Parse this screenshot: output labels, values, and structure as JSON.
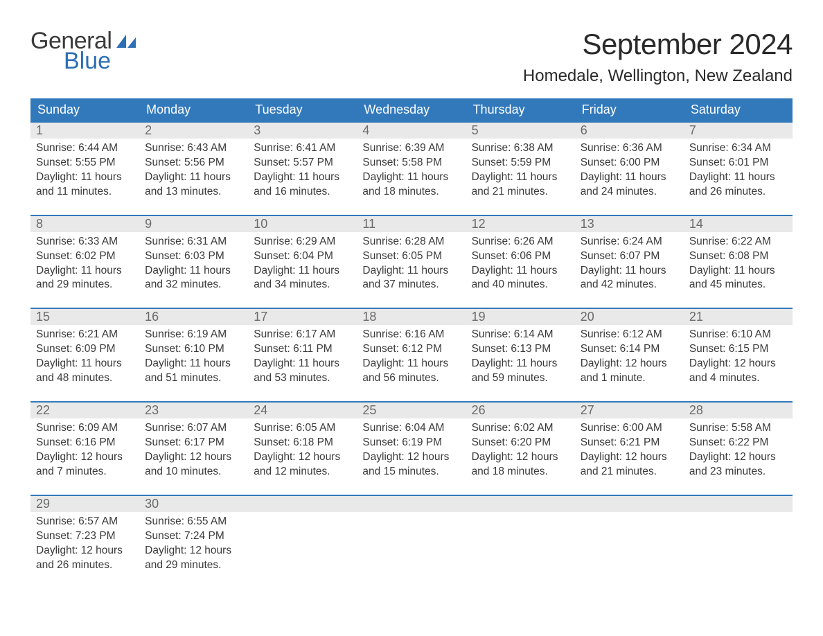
{
  "logo": {
    "text1": "General",
    "text2": "Blue"
  },
  "title": "September 2024",
  "location": "Homedale, Wellington, New Zealand",
  "colors": {
    "header_bg": "#3279bc",
    "header_text": "#ffffff",
    "daynum_bg": "#e9e9e9",
    "daynum_text": "#6a6a6a",
    "body_text": "#3a3a3a",
    "rule": "#3279bc",
    "logo_blue": "#2c6fb5"
  },
  "weekdays": [
    "Sunday",
    "Monday",
    "Tuesday",
    "Wednesday",
    "Thursday",
    "Friday",
    "Saturday"
  ],
  "labels": {
    "sunrise": "Sunrise:",
    "sunset": "Sunset:",
    "daylight": "Daylight:"
  },
  "days": [
    {
      "n": "1",
      "sr": "6:44 AM",
      "ss": "5:55 PM",
      "dl": "11 hours and 11 minutes."
    },
    {
      "n": "2",
      "sr": "6:43 AM",
      "ss": "5:56 PM",
      "dl": "11 hours and 13 minutes."
    },
    {
      "n": "3",
      "sr": "6:41 AM",
      "ss": "5:57 PM",
      "dl": "11 hours and 16 minutes."
    },
    {
      "n": "4",
      "sr": "6:39 AM",
      "ss": "5:58 PM",
      "dl": "11 hours and 18 minutes."
    },
    {
      "n": "5",
      "sr": "6:38 AM",
      "ss": "5:59 PM",
      "dl": "11 hours and 21 minutes."
    },
    {
      "n": "6",
      "sr": "6:36 AM",
      "ss": "6:00 PM",
      "dl": "11 hours and 24 minutes."
    },
    {
      "n": "7",
      "sr": "6:34 AM",
      "ss": "6:01 PM",
      "dl": "11 hours and 26 minutes."
    },
    {
      "n": "8",
      "sr": "6:33 AM",
      "ss": "6:02 PM",
      "dl": "11 hours and 29 minutes."
    },
    {
      "n": "9",
      "sr": "6:31 AM",
      "ss": "6:03 PM",
      "dl": "11 hours and 32 minutes."
    },
    {
      "n": "10",
      "sr": "6:29 AM",
      "ss": "6:04 PM",
      "dl": "11 hours and 34 minutes."
    },
    {
      "n": "11",
      "sr": "6:28 AM",
      "ss": "6:05 PM",
      "dl": "11 hours and 37 minutes."
    },
    {
      "n": "12",
      "sr": "6:26 AM",
      "ss": "6:06 PM",
      "dl": "11 hours and 40 minutes."
    },
    {
      "n": "13",
      "sr": "6:24 AM",
      "ss": "6:07 PM",
      "dl": "11 hours and 42 minutes."
    },
    {
      "n": "14",
      "sr": "6:22 AM",
      "ss": "6:08 PM",
      "dl": "11 hours and 45 minutes."
    },
    {
      "n": "15",
      "sr": "6:21 AM",
      "ss": "6:09 PM",
      "dl": "11 hours and 48 minutes."
    },
    {
      "n": "16",
      "sr": "6:19 AM",
      "ss": "6:10 PM",
      "dl": "11 hours and 51 minutes."
    },
    {
      "n": "17",
      "sr": "6:17 AM",
      "ss": "6:11 PM",
      "dl": "11 hours and 53 minutes."
    },
    {
      "n": "18",
      "sr": "6:16 AM",
      "ss": "6:12 PM",
      "dl": "11 hours and 56 minutes."
    },
    {
      "n": "19",
      "sr": "6:14 AM",
      "ss": "6:13 PM",
      "dl": "11 hours and 59 minutes."
    },
    {
      "n": "20",
      "sr": "6:12 AM",
      "ss": "6:14 PM",
      "dl": "12 hours and 1 minute."
    },
    {
      "n": "21",
      "sr": "6:10 AM",
      "ss": "6:15 PM",
      "dl": "12 hours and 4 minutes."
    },
    {
      "n": "22",
      "sr": "6:09 AM",
      "ss": "6:16 PM",
      "dl": "12 hours and 7 minutes."
    },
    {
      "n": "23",
      "sr": "6:07 AM",
      "ss": "6:17 PM",
      "dl": "12 hours and 10 minutes."
    },
    {
      "n": "24",
      "sr": "6:05 AM",
      "ss": "6:18 PM",
      "dl": "12 hours and 12 minutes."
    },
    {
      "n": "25",
      "sr": "6:04 AM",
      "ss": "6:19 PM",
      "dl": "12 hours and 15 minutes."
    },
    {
      "n": "26",
      "sr": "6:02 AM",
      "ss": "6:20 PM",
      "dl": "12 hours and 18 minutes."
    },
    {
      "n": "27",
      "sr": "6:00 AM",
      "ss": "6:21 PM",
      "dl": "12 hours and 21 minutes."
    },
    {
      "n": "28",
      "sr": "5:58 AM",
      "ss": "6:22 PM",
      "dl": "12 hours and 23 minutes."
    },
    {
      "n": "29",
      "sr": "6:57 AM",
      "ss": "7:23 PM",
      "dl": "12 hours and 26 minutes."
    },
    {
      "n": "30",
      "sr": "6:55 AM",
      "ss": "7:24 PM",
      "dl": "12 hours and 29 minutes."
    }
  ],
  "layout": {
    "start_weekday_index": 0,
    "weeks": 5
  }
}
